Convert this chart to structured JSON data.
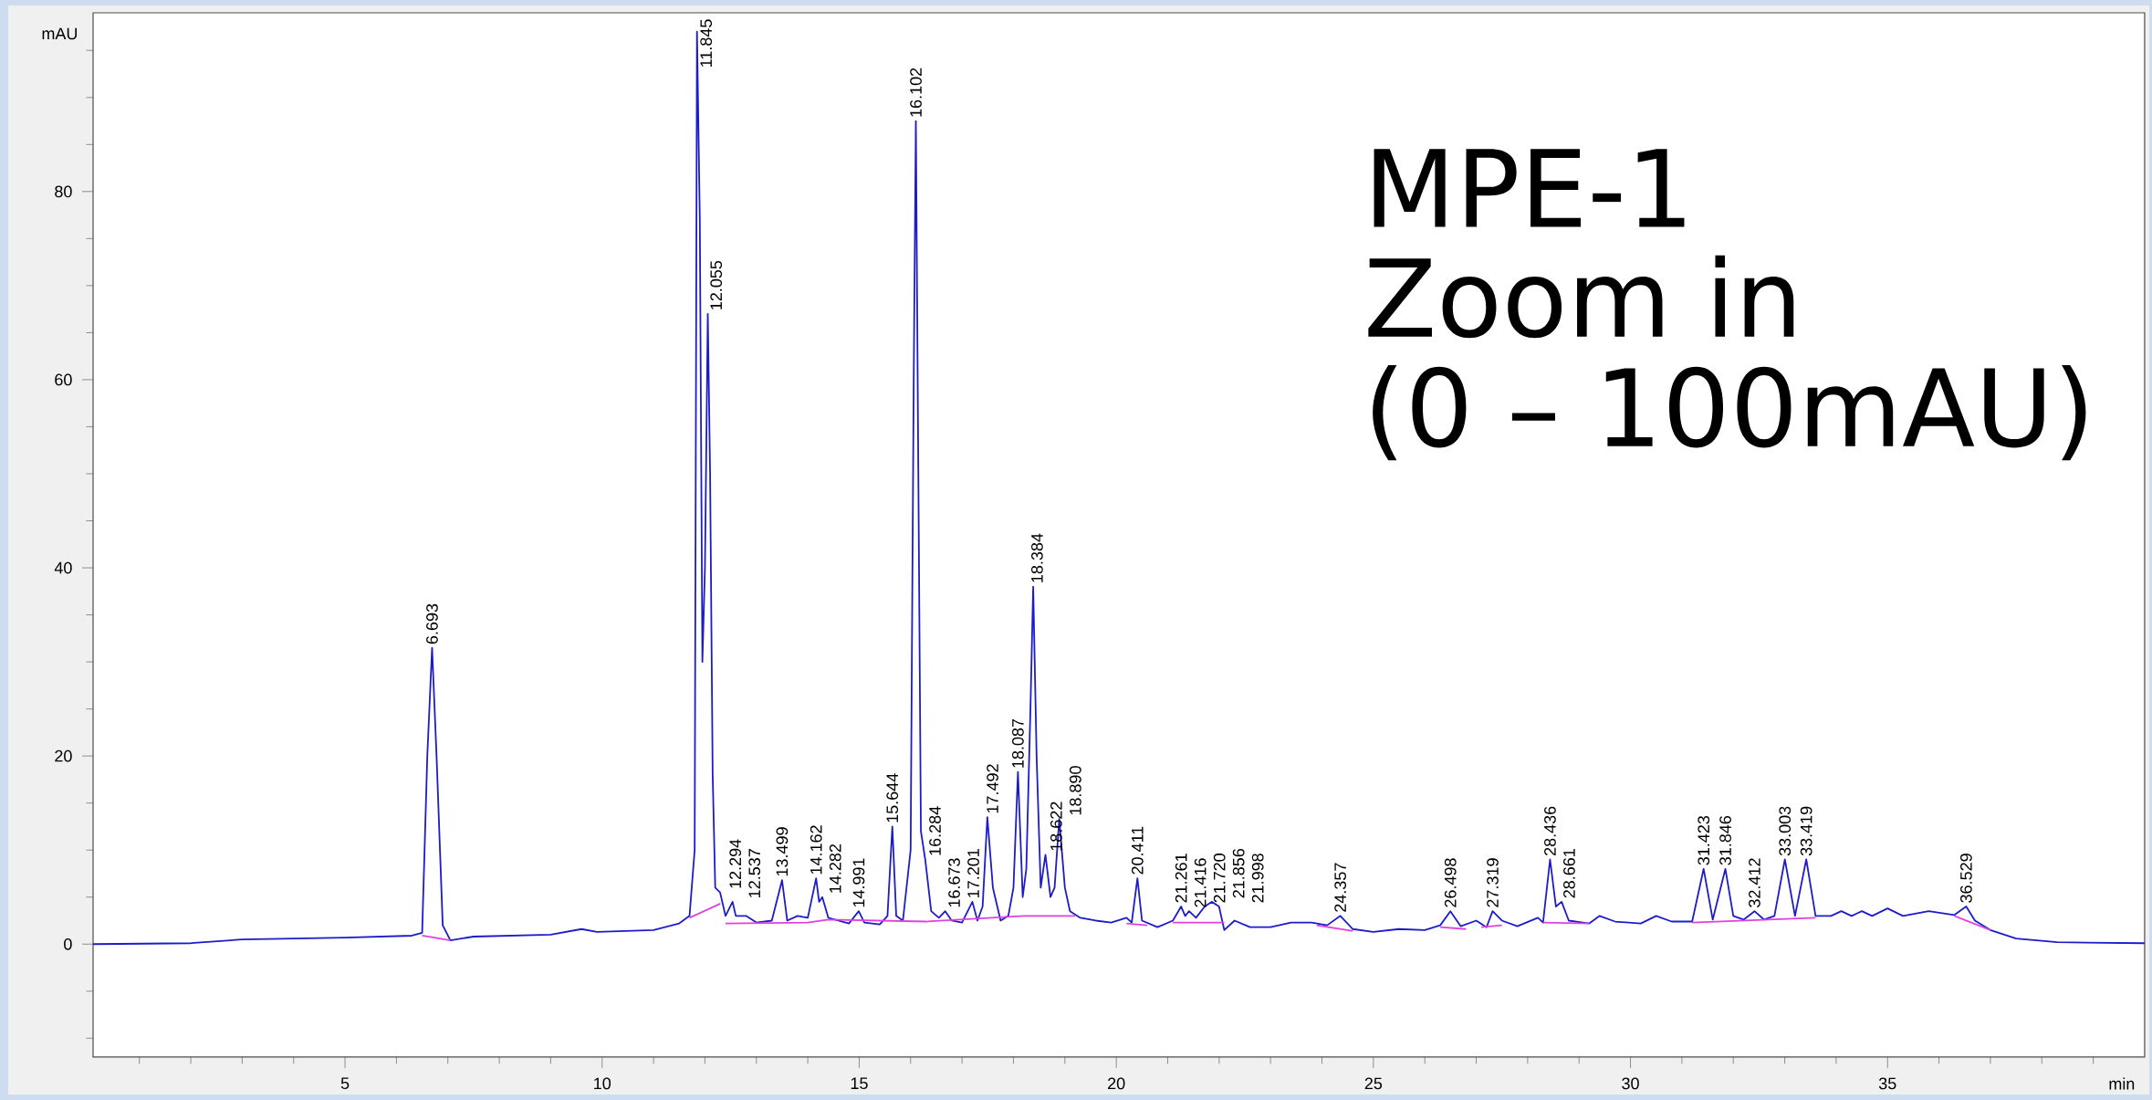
{
  "chart_data": {
    "type": "line",
    "xlabel": "min",
    "ylabel": "mAU",
    "xlim": [
      0.1,
      40
    ],
    "ylim": [
      -12,
      99
    ],
    "xticks": [
      {
        "value": 1,
        "label": null
      },
      {
        "value": 2,
        "label": null
      },
      {
        "value": 3,
        "label": null
      },
      {
        "value": 4,
        "label": null
      },
      5,
      {
        "value": 6,
        "label": null
      },
      {
        "value": 7,
        "label": null
      },
      {
        "value": 8,
        "label": null
      },
      {
        "value": 9,
        "label": null
      },
      10,
      {
        "value": 11,
        "label": null
      },
      {
        "value": 12,
        "label": null
      },
      {
        "value": 13,
        "label": null
      },
      {
        "value": 14,
        "label": null
      },
      15,
      {
        "value": 16,
        "label": null
      },
      {
        "value": 17,
        "label": null
      },
      {
        "value": 18,
        "label": null
      },
      {
        "value": 19,
        "label": null
      },
      20,
      {
        "value": 21,
        "label": null
      },
      {
        "value": 22,
        "label": null
      },
      {
        "value": 23,
        "label": null
      },
      {
        "value": 24,
        "label": null
      },
      25,
      {
        "value": 26,
        "label": null
      },
      {
        "value": 27,
        "label": null
      },
      {
        "value": 28,
        "label": null
      },
      {
        "value": 29,
        "label": null
      },
      30,
      {
        "value": 31,
        "label": null
      },
      {
        "value": 32,
        "label": null
      },
      {
        "value": 33,
        "label": null
      },
      {
        "value": 34,
        "label": null
      },
      35,
      {
        "value": 36,
        "label": null
      },
      {
        "value": 37,
        "label": null
      },
      {
        "value": 38,
        "label": null
      },
      {
        "value": 39,
        "label": null
      }
    ],
    "yticks": [
      {
        "value": -10,
        "label": null
      },
      {
        "value": -5,
        "label": null
      },
      0,
      {
        "value": 5,
        "label": null
      },
      {
        "value": 10,
        "label": null
      },
      {
        "value": 15,
        "label": null
      },
      20,
      {
        "value": 25,
        "label": null
      },
      {
        "value": 30,
        "label": null
      },
      {
        "value": 35,
        "label": null
      },
      40,
      {
        "value": 45,
        "label": null
      },
      {
        "value": 50,
        "label": null
      },
      {
        "value": 55,
        "label": null
      },
      60,
      {
        "value": 65,
        "label": null
      },
      {
        "value": 70,
        "label": null
      },
      {
        "value": 75,
        "label": null
      },
      80,
      {
        "value": 85,
        "label": null
      },
      {
        "value": 90,
        "label": null
      },
      {
        "value": 95,
        "label": null
      }
    ],
    "marker": "none",
    "line_style": "solid",
    "series": [
      {
        "color": "#1c1cc8",
        "x": [
          0.1,
          2,
          3,
          5,
          6.3,
          6.5,
          6.6,
          6.693,
          6.78,
          6.9,
          7.05,
          7.5,
          9,
          9.6,
          9.9,
          11,
          11.5,
          11.7,
          11.8,
          11.845,
          11.9,
          11.95,
          12.0,
          12.055,
          12.1,
          12.15,
          12.2,
          12.294,
          12.4,
          12.537,
          12.6,
          12.8,
          13.0,
          13.3,
          13.499,
          13.6,
          13.8,
          14.0,
          14.162,
          14.22,
          14.282,
          14.4,
          14.6,
          14.8,
          14.991,
          15.1,
          15.4,
          15.55,
          15.644,
          15.72,
          15.85,
          16.0,
          16.06,
          16.102,
          16.15,
          16.2,
          16.284,
          16.4,
          16.55,
          16.673,
          16.8,
          17.0,
          17.201,
          17.3,
          17.4,
          17.492,
          17.6,
          17.75,
          17.9,
          18.0,
          18.087,
          18.18,
          18.25,
          18.33,
          18.384,
          18.45,
          18.53,
          18.622,
          18.72,
          18.8,
          18.89,
          19.0,
          19.1,
          19.3,
          19.6,
          19.9,
          20.2,
          20.3,
          20.411,
          20.5,
          20.8,
          21.1,
          21.261,
          21.34,
          21.416,
          21.55,
          21.72,
          21.856,
          21.998,
          22.1,
          22.3,
          22.6,
          23.0,
          23.4,
          23.8,
          24.1,
          24.357,
          24.6,
          25.0,
          25.5,
          26.0,
          26.3,
          26.498,
          26.7,
          27.0,
          27.2,
          27.319,
          27.5,
          27.8,
          28.2,
          28.3,
          28.436,
          28.55,
          28.661,
          28.8,
          29.2,
          29.4,
          29.7,
          30.2,
          30.5,
          30.8,
          31.2,
          31.423,
          31.6,
          31.846,
          32.0,
          32.2,
          32.412,
          32.6,
          32.8,
          33.003,
          33.2,
          33.419,
          33.6,
          33.9,
          34.1,
          34.3,
          34.5,
          34.7,
          35.0,
          35.3,
          35.8,
          36.3,
          36.529,
          36.7,
          37.0,
          37.5,
          38.3,
          40
        ],
        "values": [
          0,
          0.1,
          0.5,
          0.7,
          0.9,
          1.2,
          20,
          31.5,
          20,
          2,
          0.4,
          0.8,
          1.0,
          1.6,
          1.3,
          1.5,
          2.2,
          3,
          10,
          97,
          77,
          30,
          40,
          67,
          50,
          18,
          6,
          5.5,
          3,
          4.5,
          3,
          3,
          2.3,
          2.5,
          6.8,
          2.5,
          3,
          2.8,
          7,
          4.5,
          5,
          2.8,
          2.5,
          2.2,
          3.5,
          2.3,
          2.1,
          3,
          12.5,
          3,
          2.5,
          10,
          60,
          87.5,
          50,
          12,
          9,
          3.5,
          2.8,
          3.5,
          2.5,
          2.3,
          4.5,
          2.5,
          4,
          13.5,
          6,
          2.5,
          3,
          6,
          18.3,
          5,
          8,
          25,
          38,
          20,
          6,
          9.5,
          5,
          6,
          13.3,
          6,
          3.5,
          2.8,
          2.5,
          2.3,
          2.8,
          2.3,
          7,
          2.5,
          1.8,
          2.5,
          4,
          3,
          3.5,
          2.8,
          4,
          4.5,
          4,
          1.5,
          2.5,
          1.8,
          1.8,
          2.3,
          2.3,
          2.0,
          3,
          1.6,
          1.3,
          1.6,
          1.5,
          2.0,
          3.5,
          1.9,
          2.5,
          1.8,
          3.5,
          2.5,
          1.9,
          2.8,
          2.3,
          9,
          4,
          4.5,
          2.5,
          2.2,
          3,
          2.4,
          2.2,
          3,
          2.4,
          2.4,
          8,
          2.6,
          8,
          3,
          2.6,
          3.5,
          2.6,
          3,
          9,
          3,
          9,
          3,
          3,
          3.5,
          3,
          3.5,
          3,
          3.8,
          3,
          3.5,
          3.1,
          4,
          2.5,
          1.5,
          0.6,
          0.2,
          0.1
        ]
      },
      {
        "color": "#e040e0",
        "x": [
          6.5,
          7.05,
          7.1,
          11.7,
          12.3,
          12.35,
          12.4,
          14.0,
          14.4,
          16.3,
          18.2,
          19.2,
          19.25,
          20.2,
          20.6,
          20.65,
          21.1,
          22.1,
          22.15,
          23.9,
          24.6,
          24.65,
          26.3,
          26.8,
          26.85,
          27.1,
          27.5,
          27.55,
          28.3,
          29.2,
          29.25,
          31.2,
          33.6,
          33.65,
          36.3,
          37.0
        ],
        "values": [
          0.9,
          0.4,
          null,
          2.8,
          4.3,
          null,
          2.2,
          2.3,
          2.6,
          2.4,
          3.0,
          3.0,
          null,
          2.2,
          2.0,
          null,
          2.3,
          2.3,
          null,
          2.0,
          1.4,
          null,
          1.8,
          1.6,
          null,
          1.8,
          2.0,
          null,
          2.3,
          2.2,
          null,
          2.3,
          2.8,
          null,
          3.0,
          1.5
        ]
      }
    ],
    "annotations": [
      {
        "text": "6.693",
        "x": 6.693,
        "y": 31.5
      },
      {
        "text": "11.845",
        "x": 11.845,
        "y": 97
      },
      {
        "text": "12.055",
        "x": 12.055,
        "y": 67
      },
      {
        "text": "12.294",
        "x": 12.294,
        "y": 5.5
      },
      {
        "text": "12.537",
        "x": 12.537,
        "y": 4.5
      },
      {
        "text": "13.499",
        "x": 13.499,
        "y": 6.8
      },
      {
        "text": "14.162",
        "x": 14.162,
        "y": 7
      },
      {
        "text": "14.282",
        "x": 14.282,
        "y": 5
      },
      {
        "text": "14.991",
        "x": 14.991,
        "y": 3.5
      },
      {
        "text": "15.644",
        "x": 15.644,
        "y": 12.5
      },
      {
        "text": "16.102",
        "x": 16.102,
        "y": 87.5
      },
      {
        "text": "16.284",
        "x": 16.284,
        "y": 9
      },
      {
        "text": "16.673",
        "x": 16.673,
        "y": 3.5
      },
      {
        "text": "17.201",
        "x": 17.201,
        "y": 4.5
      },
      {
        "text": "17.492",
        "x": 17.492,
        "y": 13.5
      },
      {
        "text": "18.087",
        "x": 18.087,
        "y": 18.3
      },
      {
        "text": "18.384",
        "x": 18.384,
        "y": 38
      },
      {
        "text": "18.622",
        "x": 18.622,
        "y": 9.5
      },
      {
        "text": "18.890",
        "x": 18.89,
        "y": 13.3
      },
      {
        "text": "20.411",
        "x": 20.411,
        "y": 7
      },
      {
        "text": "21.261",
        "x": 21.261,
        "y": 4
      },
      {
        "text": "21.416",
        "x": 21.416,
        "y": 3.5
      },
      {
        "text": "21.720",
        "x": 21.72,
        "y": 4
      },
      {
        "text": "21.856",
        "x": 21.856,
        "y": 4.5
      },
      {
        "text": "21.998",
        "x": 21.998,
        "y": 4
      },
      {
        "text": "24.357",
        "x": 24.357,
        "y": 3
      },
      {
        "text": "26.498",
        "x": 26.498,
        "y": 3.5
      },
      {
        "text": "27.319",
        "x": 27.319,
        "y": 3.5
      },
      {
        "text": "28.436",
        "x": 28.436,
        "y": 9
      },
      {
        "text": "28.661",
        "x": 28.661,
        "y": 4.5
      },
      {
        "text": "31.423",
        "x": 31.423,
        "y": 8
      },
      {
        "text": "31.846",
        "x": 31.846,
        "y": 8
      },
      {
        "text": "32.412",
        "x": 32.412,
        "y": 3.5
      },
      {
        "text": "33.003",
        "x": 33.003,
        "y": 9
      },
      {
        "text": "33.419",
        "x": 33.419,
        "y": 9
      },
      {
        "text": "36.529",
        "x": 36.529,
        "y": 4
      },
      "MPE-1",
      "Zoom in",
      "(0 – 100mAU)"
    ]
  }
}
